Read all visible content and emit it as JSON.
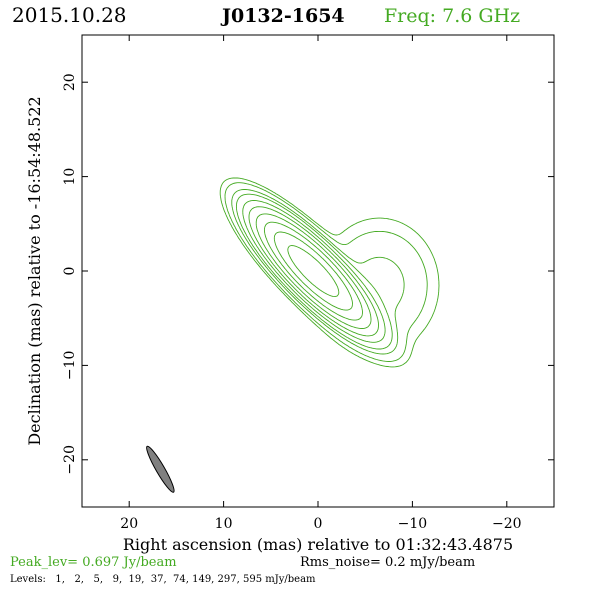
{
  "header": {
    "date": "2015.10.28",
    "source": "J0132-1654",
    "freq": "Freq: 7.6 GHz"
  },
  "footer": {
    "peak": "Peak_lev=  0.697 Jy/beam",
    "rms": "Rms_noise=  0.2 mJy/beam",
    "levels": "Levels:   1,   2,   5,   9,  19,  37,  74, 149, 297, 595 mJy/beam"
  },
  "colors": {
    "contour": "#44aa22",
    "beam_fill": "#808080",
    "axes": "#000000"
  },
  "chart_data": {
    "type": "contour",
    "xlabel": "Right ascension (mas) relative to 01:32:43.4875",
    "ylabel": "Declination (mas) relative to -16:54:48.522",
    "xlim": [
      25,
      -25
    ],
    "ylim": [
      -25,
      25
    ],
    "x_ticks": [
      20,
      10,
      0,
      -10,
      -20
    ],
    "y_ticks": [
      20,
      10,
      0,
      -10,
      -20
    ],
    "x_tick_labels": [
      "20",
      "10",
      "0",
      "−10",
      "−20"
    ],
    "y_tick_labels": [
      "20",
      "10",
      "0",
      "−10",
      "−20"
    ],
    "levels_mJy": [
      1,
      2,
      5,
      9,
      19,
      37,
      74,
      149,
      297,
      595
    ],
    "peak_Jy_per_beam": 0.697,
    "rms_mJy_per_beam": 0.2,
    "beam": {
      "x": 16.7,
      "y": -21.0,
      "major_mas": 5.6,
      "minor_mas": 0.9,
      "pa_deg": 30
    },
    "core": {
      "x": 0.5,
      "y": 0
    },
    "jet": {
      "x": -6.5,
      "y": -1.5
    }
  }
}
